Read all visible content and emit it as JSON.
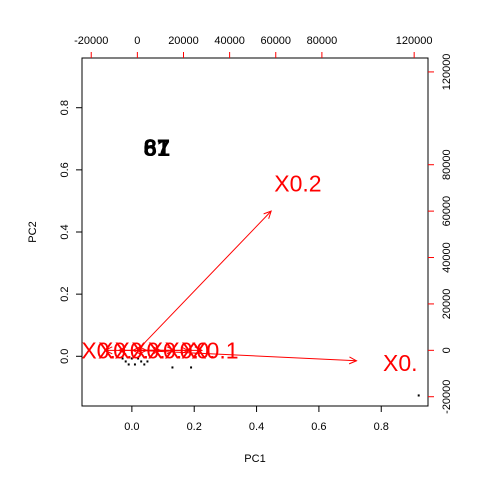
{
  "chart_data": {
    "type": "scatter",
    "subtype": "pca-biplot",
    "title": "",
    "xlabel": "PC1",
    "ylabel": "PC2",
    "xlim": [
      -0.16,
      0.95
    ],
    "ylim": [
      -0.16,
      0.96
    ],
    "secondary_xlim": [
      -24000,
      126000
    ],
    "secondary_ylim": [
      -24000,
      126000
    ],
    "x_ticks": [
      "0.0",
      "0.2",
      "0.4",
      "0.6",
      "0.8"
    ],
    "x_tick_values": [
      0.0,
      0.2,
      0.4,
      0.6,
      0.8
    ],
    "y_ticks": [
      "0.0",
      "0.2",
      "0.4",
      "0.6",
      "0.8"
    ],
    "y_tick_values": [
      0.0,
      0.2,
      0.4,
      0.6,
      0.8
    ],
    "top_ticks": [
      "-20000",
      "0",
      "20000",
      "40000",
      "60000",
      "80000",
      "120000"
    ],
    "top_tick_values": [
      -20000,
      0,
      20000,
      40000,
      60000,
      80000,
      120000
    ],
    "right_ticks": [
      "-20000",
      "0",
      "20000",
      "40000",
      "60000",
      "80000",
      "120000"
    ],
    "right_tick_values": [
      -20000,
      0,
      20000,
      40000,
      60000,
      80000,
      120000
    ],
    "grid": false,
    "observations": {
      "labeled": [
        {
          "label": "87",
          "x": 0.08,
          "y": 0.67
        },
        {
          "label": "61",
          "x": 0.08,
          "y": 0.67
        }
      ],
      "points": [
        {
          "x": 0.0,
          "y": -0.01
        },
        {
          "x": -0.02,
          "y": -0.02
        },
        {
          "x": 0.01,
          "y": -0.03
        },
        {
          "x": 0.03,
          "y": -0.02
        },
        {
          "x": -0.01,
          "y": -0.03
        },
        {
          "x": 0.02,
          "y": -0.01
        },
        {
          "x": -0.03,
          "y": -0.01
        },
        {
          "x": 0.04,
          "y": -0.03
        },
        {
          "x": 0.05,
          "y": -0.02
        },
        {
          "x": 0.13,
          "y": -0.04
        },
        {
          "x": 0.19,
          "y": -0.04
        },
        {
          "x": 0.92,
          "y": -0.13
        }
      ]
    },
    "loadings": [
      {
        "label": "X0.2",
        "x": 58000,
        "y": 60000
      },
      {
        "label": "X0.",
        "x": 95000,
        "y": -4500
      },
      {
        "label": "X0.",
        "x": -14000,
        "y": 0
      },
      {
        "label": "X0.",
        "x": -8000,
        "y": 0
      },
      {
        "label": "X0.",
        "x": -2000,
        "y": 0
      },
      {
        "label": "X0.",
        "x": 4000,
        "y": 0
      },
      {
        "label": "X0.",
        "x": 10000,
        "y": 0
      },
      {
        "label": "X0.",
        "x": 16000,
        "y": 0
      },
      {
        "label": "X0.",
        "x": 22000,
        "y": 0
      },
      {
        "label": "X0.1",
        "x": 28000,
        "y": 0
      }
    ],
    "colors": {
      "observations": "#000000",
      "loadings": "#ff0000",
      "axes": "#000000",
      "secondary_axes": "#ff0000"
    }
  }
}
